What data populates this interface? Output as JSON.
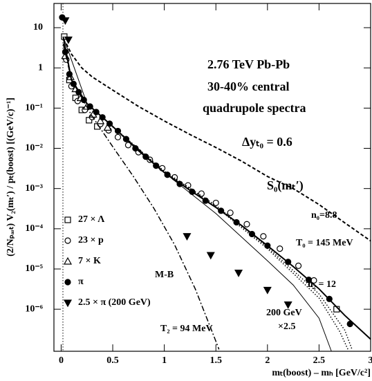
{
  "chart_data": {
    "type": "scatter",
    "xlabel": "mₜ(boost) – mₕ [GeV/c²]",
    "ylabel": "(2/Nₚₐᵣₜ) V₂(mₜ′) / pₜ(boost) [(GeV/c)⁻¹]",
    "xlim": [
      -0.07,
      3
    ],
    "ylim": [
      9e-08,
      40
    ],
    "ylog": true,
    "xticks": [
      0,
      0.5,
      1,
      1.5,
      2,
      2.5,
      3
    ],
    "yticks": [
      10,
      1,
      {
        "value": 0.1,
        "label": "10⁻¹"
      },
      {
        "value": 0.01,
        "label": "10⁻²"
      },
      {
        "value": 0.001,
        "label": "10⁻³"
      },
      {
        "value": 0.0001,
        "label": "10⁻⁴"
      },
      {
        "value": 1e-05,
        "label": "10⁻⁵"
      },
      {
        "value": 1e-06,
        "label": "10⁻⁶"
      }
    ],
    "annotations": [
      "2.76 TeV Pb-Pb",
      "30-40% central",
      "quadrupole spectra",
      "Δyₜ₀ = 0.6",
      "S₀(mₜ′)",
      "n₀=8.8",
      "T₀ = 145 MeV",
      "n₂ = 12",
      "M-B",
      "T₂ = 94 MeV",
      "200 GeV",
      "×2.5"
    ],
    "series": [
      {
        "name": "27 × Λ",
        "marker": "open-square",
        "color": "#000000",
        "x": [
          0.03,
          0.08,
          0.14,
          0.2,
          0.27,
          0.35,
          2.67
        ],
        "values": [
          6,
          0.5,
          0.18,
          0.09,
          0.05,
          0.035,
          1e-06
        ]
      },
      {
        "name": "23 × p",
        "marker": "open-circle",
        "color": "#000000",
        "x": [
          0.05,
          0.1,
          0.16,
          0.23,
          0.3,
          0.38,
          0.46,
          0.55,
          0.65,
          0.75,
          0.86,
          0.98,
          1.1,
          1.23,
          1.36,
          1.5,
          1.64,
          1.8,
          1.96,
          2.12,
          2.3,
          2.45
        ],
        "values": [
          1.6,
          0.35,
          0.15,
          0.09,
          0.06,
          0.04,
          0.028,
          0.019,
          0.012,
          0.008,
          0.0052,
          0.0032,
          0.0019,
          0.0012,
          0.00075,
          0.00044,
          0.00025,
          0.00013,
          6.5e-05,
          3.2e-05,
          1.2e-05,
          5.2e-06
        ]
      },
      {
        "name": "7 × K",
        "marker": "open-triangle",
        "color": "#000000",
        "x": [
          0.04,
          0.09,
          0.14,
          0.19,
          0.25,
          0.31,
          0.38,
          0.45
        ],
        "values": [
          2,
          0.6,
          0.3,
          0.18,
          0.11,
          0.07,
          0.048,
          0.033
        ]
      },
      {
        "name": "π",
        "marker": "filled-circle",
        "color": "#000000",
        "x": [
          0.01,
          0.04,
          0.08,
          0.12,
          0.17,
          0.22,
          0.28,
          0.34,
          0.4,
          0.47,
          0.55,
          0.63,
          0.72,
          0.82,
          0.92,
          1.03,
          1.15,
          1.27,
          1.4,
          1.55,
          1.7,
          1.85,
          2.0,
          2.2,
          2.4,
          2.6,
          2.8
        ],
        "values": [
          18,
          2.5,
          0.7,
          0.4,
          0.25,
          0.16,
          0.11,
          0.08,
          0.059,
          0.041,
          0.027,
          0.017,
          0.01,
          0.0062,
          0.0037,
          0.0022,
          0.0013,
          0.00083,
          0.0005,
          0.00028,
          0.000145,
          7.4e-05,
          3.8e-05,
          1.5e-05,
          5.4e-06,
          1.8e-06,
          4.3e-07
        ]
      },
      {
        "name": "2.5 × π (200 GeV)",
        "marker": "filled-down-triangle",
        "color": "#000000",
        "x": [
          0.04,
          0.07,
          1.22,
          1.45,
          1.72,
          2.0,
          2.2
        ],
        "values": [
          15,
          5,
          6.5e-05,
          2.2e-05,
          8e-06,
          3e-06,
          1.3e-06
        ]
      },
      {
        "dash": "dashed",
        "width": 2,
        "color": "#000000",
        "x": [
          0.05,
          0.1,
          0.2,
          0.3,
          0.5,
          0.75,
          1,
          1.25,
          1.5,
          1.75,
          2,
          2.25,
          2.5,
          2.75,
          3
        ],
        "values": [
          4,
          2.2,
          1,
          0.6,
          0.28,
          0.11,
          0.048,
          0.022,
          0.0105,
          0.0048,
          0.002,
          0.001,
          0.0004,
          0.00014,
          5e-05
        ]
      },
      {
        "dash": "dashdot",
        "width": 1.5,
        "color": "#000000",
        "x": [
          0.02,
          0.1,
          0.2,
          0.3,
          0.5,
          0.7,
          0.9,
          1.1,
          1.3,
          1.5,
          1.53
        ],
        "values": [
          4,
          0.5,
          0.18,
          0.063,
          0.011,
          0.002,
          0.00032,
          4e-05,
          3.2e-06,
          1.6e-07,
          1e-07
        ]
      },
      {
        "dash": "solid",
        "width": 2,
        "color": "#000000",
        "x": [
          0.02,
          0.1,
          0.25,
          0.5,
          0.75,
          1,
          1.25,
          1.5,
          1.75,
          2,
          2.25,
          2.5,
          2.75,
          3
        ],
        "values": [
          6,
          0.5,
          0.13,
          0.035,
          0.0087,
          0.0025,
          0.0009,
          0.00034,
          0.00012,
          3.8e-05,
          1.15e-05,
          3.2e-06,
          7e-07,
          1.8e-07
        ]
      },
      {
        "dash": "solid",
        "width": 1,
        "color": "#000000",
        "x": [
          0.02,
          0.25,
          0.5,
          1,
          1.5,
          2,
          2.25,
          2.5,
          2.62
        ],
        "values": [
          6,
          0.13,
          0.035,
          0.0025,
          0.00024,
          1.6e-05,
          4e-06,
          6e-07,
          9e-08
        ]
      },
      {
        "dash": "dotted",
        "width": 1.5,
        "color": "#000000",
        "x": [
          0.5,
          1,
          1.5,
          2,
          2.5,
          2.75,
          2.82
        ],
        "values": [
          0.035,
          0.0027,
          0.00038,
          3.5e-05,
          2.4e-06,
          3e-07,
          1e-07
        ]
      },
      {
        "dash": "dotted",
        "width": 1.5,
        "color": "#000000",
        "x": [
          0.5,
          1,
          1.5,
          2,
          2.5,
          2.7,
          2.78
        ],
        "values": [
          0.034,
          0.0026,
          0.00035,
          3.2e-05,
          1.9e-06,
          2.8e-07,
          1e-07
        ]
      }
    ]
  }
}
